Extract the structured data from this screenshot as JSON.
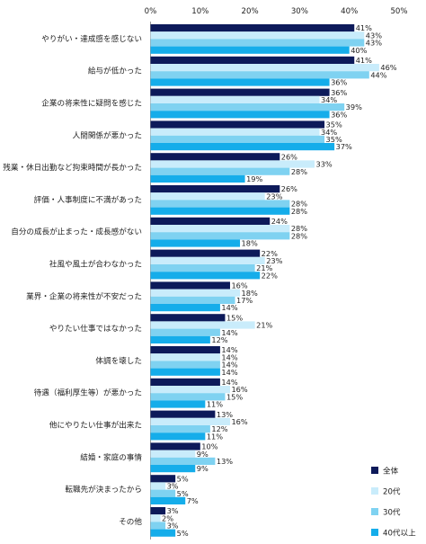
{
  "chart_data": {
    "type": "bar",
    "orientation": "horizontal",
    "x_ticks": [
      "0%",
      "10%",
      "20%",
      "30%",
      "40%",
      "50%"
    ],
    "xlim": [
      0,
      50
    ],
    "unit": "%",
    "grid": false,
    "legend_position": "bottom-right",
    "categories": [
      "やりがい・達成感を感じない",
      "給与が低かった",
      "企業の将来性に疑問を感じた",
      "人間関係が悪かった",
      "残業・休日出勤など拘束時間が長かった",
      "評価・人事制度に不満があった",
      "自分の成長が止まった・成長感がない",
      "社風や風土が合わなかった",
      "業界・企業の将来性が不安だった",
      "やりたい仕事ではなかった",
      "体調を壊した",
      "待遇（福利厚生等）が悪かった",
      "他にやりたい仕事が出来た",
      "結婚・家庭の事情",
      "転職先が決まったから",
      "その他"
    ],
    "series": [
      {
        "name": "全体",
        "color": "#0d1a5a",
        "values": [
          41,
          41,
          36,
          35,
          26,
          26,
          24,
          22,
          16,
          15,
          14,
          14,
          13,
          10,
          5,
          3
        ]
      },
      {
        "name": "20代",
        "color": "#c9ecfb",
        "values": [
          43,
          46,
          34,
          34,
          33,
          23,
          28,
          23,
          18,
          21,
          14,
          16,
          16,
          9,
          3,
          2
        ]
      },
      {
        "name": "30代",
        "color": "#7fd2f1",
        "values": [
          43,
          44,
          39,
          35,
          28,
          28,
          28,
          21,
          17,
          14,
          14,
          15,
          12,
          13,
          5,
          3
        ]
      },
      {
        "name": "40代以上",
        "color": "#15adea",
        "values": [
          40,
          36,
          36,
          37,
          19,
          28,
          18,
          22,
          14,
          12,
          14,
          11,
          11,
          9,
          7,
          5
        ]
      }
    ]
  }
}
